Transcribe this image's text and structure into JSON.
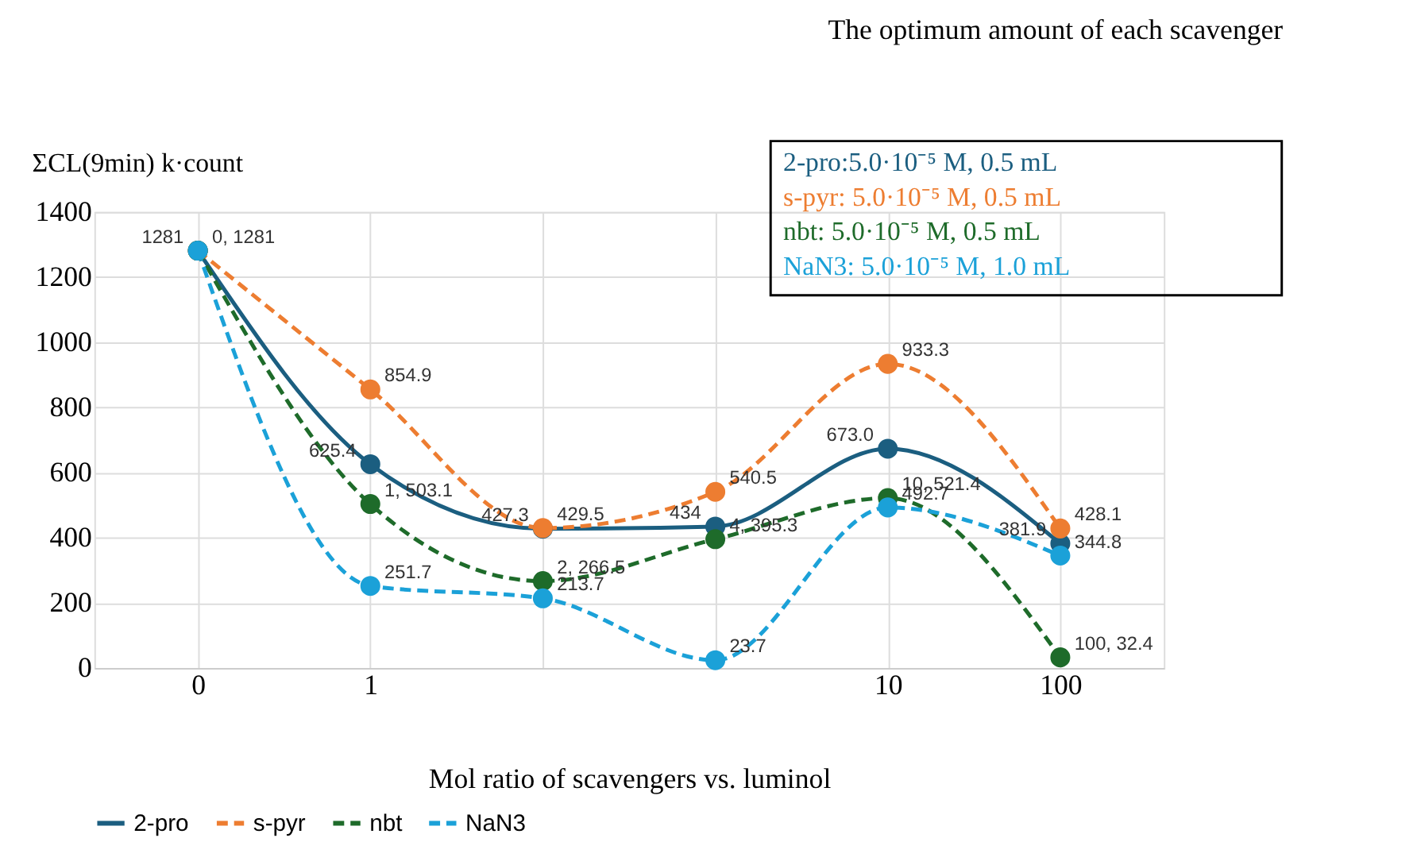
{
  "chart_data": {
    "type": "line",
    "title": "The optimum amount of each scavenger",
    "ylabel": "ΣCL(9min)  k·count",
    "xlabel": "Mol ratio of scavengers vs. luminol",
    "categories": [
      "0",
      "1",
      null,
      null,
      "10",
      "100"
    ],
    "ylim": [
      0,
      1400
    ],
    "yticks": [
      0,
      200,
      400,
      600,
      800,
      1000,
      1200,
      1400
    ],
    "grid": true,
    "legend": "bottom",
    "marker": "circle",
    "series": [
      {
        "name": "2-pro",
        "color": "#1b5e80",
        "line_style": "solid",
        "values": [
          1281,
          625.4,
          427.3,
          434,
          673.0,
          381.9
        ],
        "value_labels": [
          "1281",
          "625.4",
          "427.3",
          "434",
          "673.0",
          "381.9"
        ]
      },
      {
        "name": "s-pyr",
        "color": "#ed7d31",
        "line_style": "dashed",
        "values": [
          1281,
          854.9,
          429.5,
          540.5,
          933.3,
          428.1
        ],
        "value_labels": [
          null,
          "854.9",
          "429.5",
          "540.5",
          "933.3",
          "428.1"
        ]
      },
      {
        "name": "nbt",
        "color": "#1e6b2a",
        "line_style": "dashed",
        "values": [
          1281,
          503.1,
          266.5,
          395.3,
          521.4,
          32.4
        ],
        "value_labels": [
          "0, 1281",
          "1, 503.1",
          "2, 266.5",
          "4, 395.3",
          "10, 521.4",
          "100, 32.4"
        ]
      },
      {
        "name": "NaN3",
        "color": "#1ba1d8",
        "line_style": "dashed",
        "values": [
          1281,
          251.7,
          213.7,
          23.7,
          492.7,
          344.8
        ],
        "value_labels": [
          null,
          "251.7",
          "213.7",
          "23.7",
          "492.7",
          "344.8"
        ]
      }
    ],
    "annotations": [
      "2-pro:5.0·10⁻⁵ M, 0.5 mL",
      "s-pyr: 5.0·10⁻⁵ M, 0.5 mL",
      "nbt: 5.0·10⁻⁵ M, 0.5 mL",
      "NaN3: 5.0·10⁻⁵ M, 1.0 mL"
    ]
  }
}
